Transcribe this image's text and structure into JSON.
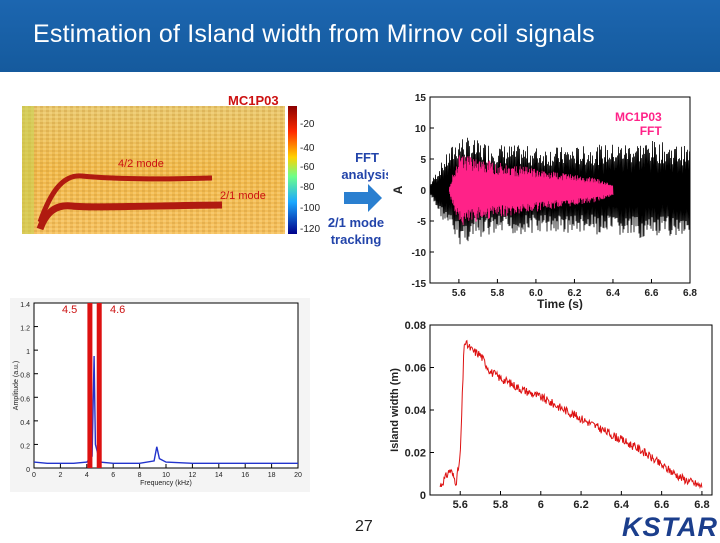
{
  "header": {
    "title": "Estimation of Island width from Mirnov coil signals"
  },
  "labels": {
    "mc1p03_top": "MC1P03",
    "mc1p03_fft_line1": "MC1P03",
    "mc1p03_fft_line2": "FFT",
    "fft_analysis_line1": "FFT",
    "fft_analysis_line2": "analysis",
    "mode_tracking_line1": "2/1 mode",
    "mode_tracking_line2": "tracking",
    "spec_mode42": "4/2 mode",
    "spec_mode21": "2/1 mode",
    "marker_left": "4.5",
    "marker_right": "4.6"
  },
  "spectrogram": {
    "colorbar_ticks": [
      "-20",
      "-40",
      "-60",
      "-80",
      "-100",
      "-120"
    ]
  },
  "footer": {
    "page_number": "27",
    "logo": "KSTAR"
  },
  "colors": {
    "title_bar": "#1c66b0",
    "accent_red": "#cc1111",
    "signal_pink": "#ff2288",
    "arrow_blue": "#2a7fd0"
  },
  "chart_data": [
    {
      "type": "line",
      "title": "",
      "xlabel": "Time (s)",
      "ylabel": "A",
      "xlim": [
        5.45,
        6.8
      ],
      "ylim": [
        -15,
        15
      ],
      "xticks": [
        "5.6",
        "5.8",
        "6.0",
        "6.2",
        "6.4",
        "6.6",
        "6.8"
      ],
      "yticks": [
        "15",
        "10",
        "5",
        "0",
        "-5",
        "-10",
        "-15"
      ],
      "series": [
        {
          "name": "",
          "color": "#000000",
          "envelope": [
            [
              5.45,
              1
            ],
            [
              5.5,
              4
            ],
            [
              5.6,
              9
            ],
            [
              5.7,
              8
            ],
            [
              5.8,
              7.5
            ],
            [
              6.0,
              7
            ],
            [
              6.2,
              7
            ],
            [
              6.4,
              7.5
            ],
            [
              6.6,
              8
            ],
            [
              6.8,
              7
            ]
          ]
        },
        {
          "name": "",
          "color": "#ff2288",
          "envelope": [
            [
              5.55,
              0.5
            ],
            [
              5.6,
              6
            ],
            [
              5.7,
              5
            ],
            [
              6.0,
              3.5
            ],
            [
              6.2,
              2.5
            ],
            [
              6.3,
              2
            ],
            [
              6.4,
              1
            ]
          ]
        }
      ]
    },
    {
      "type": "line",
      "title": "",
      "xlabel": "Frequency (kHz)",
      "ylabel": "Amplitude (a.u.)",
      "xlim": [
        0,
        20
      ],
      "ylim": [
        0,
        1.4
      ],
      "xticks": [
        "0",
        "2",
        "4",
        "6",
        "8",
        "10",
        "12",
        "14",
        "16",
        "18",
        "20"
      ],
      "yticks": [
        "0",
        "0.2",
        "0.4",
        "0.6",
        "0.8",
        "1",
        "1.2",
        "1.4"
      ],
      "series": [
        {
          "name": "",
          "color": "#2233cc",
          "points": [
            [
              0,
              0.05
            ],
            [
              1,
              0.04
            ],
            [
              2,
              0.04
            ],
            [
              3,
              0.04
            ],
            [
              4,
              0.05
            ],
            [
              4.4,
              0.1
            ],
            [
              4.55,
              0.95
            ],
            [
              4.65,
              0.2
            ],
            [
              5,
              0.05
            ],
            [
              6,
              0.04
            ],
            [
              8,
              0.04
            ],
            [
              9.1,
              0.06
            ],
            [
              9.3,
              0.18
            ],
            [
              9.5,
              0.08
            ],
            [
              10,
              0.05
            ],
            [
              12,
              0.04
            ],
            [
              14,
              0.04
            ],
            [
              16,
              0.04
            ],
            [
              18,
              0.04
            ],
            [
              20,
              0.04
            ]
          ]
        }
      ]
    },
    {
      "type": "line",
      "title": "",
      "xlabel": "",
      "ylabel": "Island width (m)",
      "xlim": [
        5.45,
        6.85
      ],
      "ylim": [
        0,
        0.08
      ],
      "xticks": [
        "5.6",
        "5.8",
        "6",
        "6.2",
        "6.4",
        "6.6",
        "6.8"
      ],
      "yticks": [
        "0",
        "0.02",
        "0.04",
        "0.06",
        "0.08"
      ],
      "series": [
        {
          "name": "",
          "color": "#dd1111",
          "points": [
            [
              5.5,
              0.004
            ],
            [
              5.55,
              0.012
            ],
            [
              5.58,
              0.006
            ],
            [
              5.6,
              0.018
            ],
            [
              5.62,
              0.072
            ],
            [
              5.66,
              0.068
            ],
            [
              5.7,
              0.066
            ],
            [
              5.75,
              0.058
            ],
            [
              5.8,
              0.055
            ],
            [
              5.9,
              0.05
            ],
            [
              6.0,
              0.046
            ],
            [
              6.1,
              0.041
            ],
            [
              6.2,
              0.036
            ],
            [
              6.3,
              0.031
            ],
            [
              6.4,
              0.026
            ],
            [
              6.5,
              0.021
            ],
            [
              6.6,
              0.014
            ],
            [
              6.7,
              0.008
            ],
            [
              6.8,
              0.004
            ]
          ]
        }
      ]
    }
  ]
}
